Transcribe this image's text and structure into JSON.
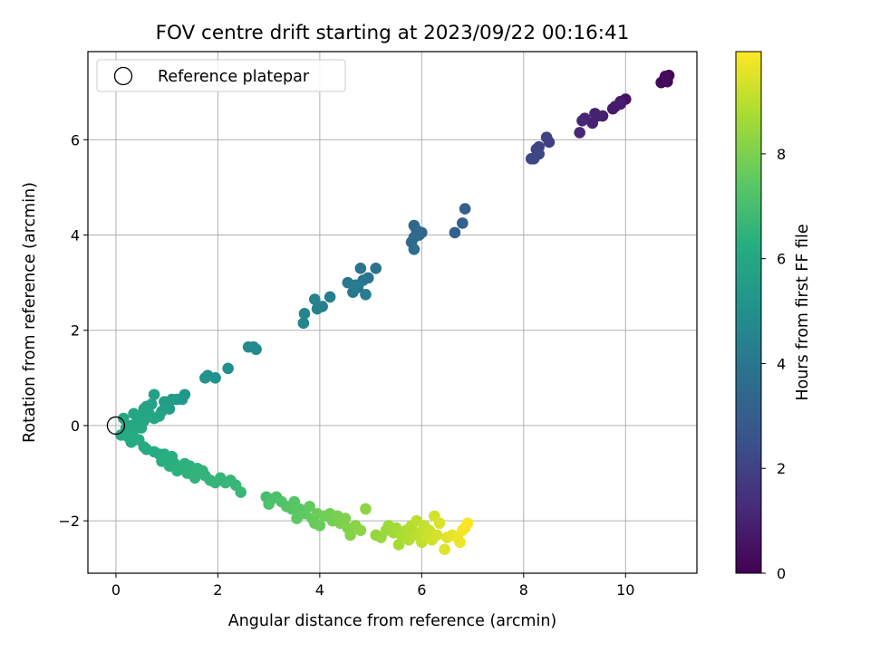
{
  "chart_data": {
    "type": "scatter",
    "title": "FOV centre drift starting at 2023/09/22 00:16:41",
    "xlabel": "Angular distance from reference (arcmin)",
    "ylabel": "Rotation from reference (arcmin)",
    "xlim": [
      -0.55,
      11.4
    ],
    "ylim": [
      -3.1,
      7.85
    ],
    "xticks": [
      0,
      2,
      4,
      6,
      8,
      10
    ],
    "yticks": [
      -2,
      0,
      2,
      4,
      6
    ],
    "grid": true,
    "legend": {
      "placement": "upper-left",
      "entries": [
        "Reference platepar"
      ]
    },
    "reference_point": {
      "x": 0,
      "y": 0,
      "marker": "open-circle"
    },
    "colorbar": {
      "label": "Hours from first FF file",
      "colormap": "viridis",
      "range": [
        0,
        9.95
      ],
      "ticks": [
        0,
        2,
        4,
        6,
        8
      ]
    },
    "points": [
      {
        "x": 10.85,
        "y": 7.35,
        "h": 0.05
      },
      {
        "x": 10.8,
        "y": 7.3,
        "h": 0.1
      },
      {
        "x": 10.75,
        "y": 7.25,
        "h": 0.15
      },
      {
        "x": 10.7,
        "y": 7.2,
        "h": 0.2
      },
      {
        "x": 10.82,
        "y": 7.22,
        "h": 0.25
      },
      {
        "x": 10.78,
        "y": 7.33,
        "h": 0.3
      },
      {
        "x": 10.0,
        "y": 6.85,
        "h": 0.5
      },
      {
        "x": 9.9,
        "y": 6.8,
        "h": 0.6
      },
      {
        "x": 9.8,
        "y": 6.7,
        "h": 0.7
      },
      {
        "x": 9.75,
        "y": 6.65,
        "h": 0.75
      },
      {
        "x": 9.9,
        "y": 6.75,
        "h": 0.8
      },
      {
        "x": 9.55,
        "y": 6.5,
        "h": 0.9
      },
      {
        "x": 9.45,
        "y": 6.5,
        "h": 0.95
      },
      {
        "x": 9.4,
        "y": 6.55,
        "h": 1.0
      },
      {
        "x": 9.35,
        "y": 6.35,
        "h": 1.05
      },
      {
        "x": 9.2,
        "y": 6.45,
        "h": 1.1
      },
      {
        "x": 9.15,
        "y": 6.4,
        "h": 1.15
      },
      {
        "x": 9.1,
        "y": 6.15,
        "h": 1.2
      },
      {
        "x": 8.5,
        "y": 5.95,
        "h": 1.9
      },
      {
        "x": 8.45,
        "y": 6.05,
        "h": 1.95
      },
      {
        "x": 8.3,
        "y": 5.85,
        "h": 2.0
      },
      {
        "x": 8.25,
        "y": 5.8,
        "h": 2.05
      },
      {
        "x": 8.3,
        "y": 5.7,
        "h": 2.1
      },
      {
        "x": 8.2,
        "y": 5.6,
        "h": 2.15
      },
      {
        "x": 8.15,
        "y": 5.6,
        "h": 2.2
      },
      {
        "x": 6.85,
        "y": 4.55,
        "h": 3.05
      },
      {
        "x": 6.8,
        "y": 4.25,
        "h": 3.1
      },
      {
        "x": 6.65,
        "y": 4.05,
        "h": 3.15
      },
      {
        "x": 6.0,
        "y": 4.05,
        "h": 3.3
      },
      {
        "x": 5.95,
        "y": 4.0,
        "h": 3.35
      },
      {
        "x": 5.85,
        "y": 4.2,
        "h": 3.4
      },
      {
        "x": 5.9,
        "y": 4.1,
        "h": 3.45
      },
      {
        "x": 5.85,
        "y": 3.95,
        "h": 3.5
      },
      {
        "x": 5.8,
        "y": 3.85,
        "h": 3.55
      },
      {
        "x": 5.85,
        "y": 3.7,
        "h": 3.6
      },
      {
        "x": 5.1,
        "y": 3.3,
        "h": 3.8
      },
      {
        "x": 4.95,
        "y": 3.1,
        "h": 3.85
      },
      {
        "x": 4.8,
        "y": 3.3,
        "h": 3.9
      },
      {
        "x": 4.85,
        "y": 3.05,
        "h": 3.95
      },
      {
        "x": 4.75,
        "y": 2.9,
        "h": 4.0
      },
      {
        "x": 4.55,
        "y": 3.0,
        "h": 4.05
      },
      {
        "x": 4.65,
        "y": 2.8,
        "h": 4.1
      },
      {
        "x": 4.7,
        "y": 2.95,
        "h": 4.15
      },
      {
        "x": 4.9,
        "y": 2.75,
        "h": 4.2
      },
      {
        "x": 4.2,
        "y": 2.7,
        "h": 4.3
      },
      {
        "x": 4.05,
        "y": 2.5,
        "h": 4.35
      },
      {
        "x": 3.95,
        "y": 2.45,
        "h": 4.4
      },
      {
        "x": 3.9,
        "y": 2.65,
        "h": 4.45
      },
      {
        "x": 3.7,
        "y": 2.35,
        "h": 4.5
      },
      {
        "x": 3.68,
        "y": 2.15,
        "h": 4.55
      },
      {
        "x": 2.7,
        "y": 1.65,
        "h": 4.7
      },
      {
        "x": 2.75,
        "y": 1.6,
        "h": 4.75
      },
      {
        "x": 2.6,
        "y": 1.65,
        "h": 4.8
      },
      {
        "x": 2.2,
        "y": 1.2,
        "h": 4.95
      },
      {
        "x": 1.8,
        "y": 1.05,
        "h": 5.0
      },
      {
        "x": 1.95,
        "y": 1.0,
        "h": 5.05
      },
      {
        "x": 1.75,
        "y": 1.0,
        "h": 5.1
      },
      {
        "x": 1.35,
        "y": 0.65,
        "h": 5.3
      },
      {
        "x": 1.3,
        "y": 0.55,
        "h": 5.35
      },
      {
        "x": 1.2,
        "y": 0.55,
        "h": 5.4
      },
      {
        "x": 1.1,
        "y": 0.55,
        "h": 5.45
      },
      {
        "x": 1.05,
        "y": 0.5,
        "h": 5.5
      },
      {
        "x": 0.95,
        "y": 0.5,
        "h": 5.55
      },
      {
        "x": 1.05,
        "y": 0.35,
        "h": 5.6
      },
      {
        "x": 0.9,
        "y": 0.3,
        "h": 5.65
      },
      {
        "x": 0.75,
        "y": 0.65,
        "h": 5.7
      },
      {
        "x": 0.7,
        "y": 0.45,
        "h": 5.75
      },
      {
        "x": 0.6,
        "y": 0.4,
        "h": 5.8
      },
      {
        "x": 0.55,
        "y": 0.35,
        "h": 5.82
      },
      {
        "x": 0.85,
        "y": 0.2,
        "h": 5.85
      },
      {
        "x": 0.75,
        "y": 0.15,
        "h": 5.87
      },
      {
        "x": 0.65,
        "y": 0.25,
        "h": 5.9
      },
      {
        "x": 0.45,
        "y": 0.2,
        "h": 5.92
      },
      {
        "x": 0.35,
        "y": 0.25,
        "h": 5.94
      },
      {
        "x": 0.55,
        "y": 0.1,
        "h": 5.96
      },
      {
        "x": 0.4,
        "y": 0.05,
        "h": 5.98
      },
      {
        "x": 0.3,
        "y": 0.0,
        "h": 6.0
      },
      {
        "x": 0.15,
        "y": 0.15,
        "h": 6.02
      },
      {
        "x": 0.5,
        "y": -0.05,
        "h": 6.04
      },
      {
        "x": 0.35,
        "y": -0.1,
        "h": 6.06
      },
      {
        "x": 0.2,
        "y": -0.05,
        "h": 6.08
      },
      {
        "x": 0.1,
        "y": -0.2,
        "h": 6.1
      },
      {
        "x": 0.25,
        "y": -0.25,
        "h": 6.12
      },
      {
        "x": 0.3,
        "y": -0.35,
        "h": 6.14
      },
      {
        "x": 0.45,
        "y": -0.3,
        "h": 6.16
      },
      {
        "x": 0.55,
        "y": -0.45,
        "h": 6.18
      },
      {
        "x": 0.6,
        "y": -0.5,
        "h": 6.2
      },
      {
        "x": 0.75,
        "y": -0.55,
        "h": 6.22
      },
      {
        "x": 0.85,
        "y": -0.6,
        "h": 6.24
      },
      {
        "x": 0.95,
        "y": -0.6,
        "h": 6.26
      },
      {
        "x": 0.9,
        "y": -0.75,
        "h": 6.28
      },
      {
        "x": 1.0,
        "y": -0.7,
        "h": 6.3
      },
      {
        "x": 1.1,
        "y": -0.65,
        "h": 6.32
      },
      {
        "x": 1.05,
        "y": -0.85,
        "h": 6.34
      },
      {
        "x": 1.15,
        "y": -0.8,
        "h": 6.36
      },
      {
        "x": 1.2,
        "y": -0.95,
        "h": 6.38
      },
      {
        "x": 1.3,
        "y": -0.9,
        "h": 6.4
      },
      {
        "x": 1.35,
        "y": -0.8,
        "h": 6.42
      },
      {
        "x": 1.45,
        "y": -0.85,
        "h": 6.44
      },
      {
        "x": 1.4,
        "y": -1.0,
        "h": 6.46
      },
      {
        "x": 1.55,
        "y": -1.0,
        "h": 6.48
      },
      {
        "x": 1.6,
        "y": -0.9,
        "h": 6.5
      },
      {
        "x": 1.55,
        "y": -1.1,
        "h": 6.52
      },
      {
        "x": 1.7,
        "y": -0.95,
        "h": 6.54
      },
      {
        "x": 1.75,
        "y": -1.05,
        "h": 6.56
      },
      {
        "x": 1.85,
        "y": -1.15,
        "h": 6.58
      },
      {
        "x": 1.95,
        "y": -1.2,
        "h": 6.6
      },
      {
        "x": 2.05,
        "y": -1.1,
        "h": 6.62
      },
      {
        "x": 2.15,
        "y": -1.2,
        "h": 6.64
      },
      {
        "x": 2.25,
        "y": -1.15,
        "h": 6.66
      },
      {
        "x": 2.35,
        "y": -1.25,
        "h": 6.68
      },
      {
        "x": 2.45,
        "y": -1.4,
        "h": 6.7
      },
      {
        "x": 2.95,
        "y": -1.5,
        "h": 7.0
      },
      {
        "x": 3.05,
        "y": -1.55,
        "h": 7.05
      },
      {
        "x": 3.15,
        "y": -1.5,
        "h": 7.1
      },
      {
        "x": 3.0,
        "y": -1.65,
        "h": 7.15
      },
      {
        "x": 3.25,
        "y": -1.6,
        "h": 7.2
      },
      {
        "x": 3.35,
        "y": -1.7,
        "h": 7.25
      },
      {
        "x": 3.5,
        "y": -1.6,
        "h": 7.3
      },
      {
        "x": 3.45,
        "y": -1.75,
        "h": 7.35
      },
      {
        "x": 3.6,
        "y": -1.75,
        "h": 7.4
      },
      {
        "x": 3.55,
        "y": -1.95,
        "h": 7.45
      },
      {
        "x": 3.7,
        "y": -1.85,
        "h": 7.5
      },
      {
        "x": 3.8,
        "y": -1.7,
        "h": 7.55
      },
      {
        "x": 3.85,
        "y": -1.95,
        "h": 7.6
      },
      {
        "x": 3.9,
        "y": -2.05,
        "h": 7.65
      },
      {
        "x": 4.0,
        "y": -2.1,
        "h": 7.7
      },
      {
        "x": 3.95,
        "y": -1.85,
        "h": 7.75
      },
      {
        "x": 4.1,
        "y": -1.9,
        "h": 7.8
      },
      {
        "x": 4.2,
        "y": -1.85,
        "h": 7.85
      },
      {
        "x": 4.25,
        "y": -2.0,
        "h": 7.9
      },
      {
        "x": 4.35,
        "y": -1.9,
        "h": 7.95
      },
      {
        "x": 4.4,
        "y": -2.05,
        "h": 8.0
      },
      {
        "x": 4.5,
        "y": -1.95,
        "h": 8.05
      },
      {
        "x": 4.55,
        "y": -2.15,
        "h": 8.1
      },
      {
        "x": 4.6,
        "y": -2.3,
        "h": 8.15
      },
      {
        "x": 4.7,
        "y": -2.1,
        "h": 8.2
      },
      {
        "x": 4.8,
        "y": -2.2,
        "h": 8.25
      },
      {
        "x": 4.9,
        "y": -1.75,
        "h": 8.3
      },
      {
        "x": 5.1,
        "y": -2.3,
        "h": 8.4
      },
      {
        "x": 5.2,
        "y": -2.35,
        "h": 8.45
      },
      {
        "x": 5.3,
        "y": -2.2,
        "h": 8.5
      },
      {
        "x": 5.35,
        "y": -2.1,
        "h": 8.55
      },
      {
        "x": 5.45,
        "y": -2.25,
        "h": 8.6
      },
      {
        "x": 5.5,
        "y": -2.15,
        "h": 8.65
      },
      {
        "x": 5.55,
        "y": -2.5,
        "h": 8.7
      },
      {
        "x": 5.6,
        "y": -2.3,
        "h": 8.75
      },
      {
        "x": 5.7,
        "y": -2.2,
        "h": 8.8
      },
      {
        "x": 5.75,
        "y": -2.4,
        "h": 8.85
      },
      {
        "x": 5.8,
        "y": -2.1,
        "h": 8.9
      },
      {
        "x": 5.85,
        "y": -2.3,
        "h": 8.95
      },
      {
        "x": 5.9,
        "y": -2.0,
        "h": 9.0
      },
      {
        "x": 5.95,
        "y": -2.25,
        "h": 9.05
      },
      {
        "x": 6.0,
        "y": -2.45,
        "h": 9.1
      },
      {
        "x": 6.05,
        "y": -2.1,
        "h": 9.15
      },
      {
        "x": 6.1,
        "y": -2.35,
        "h": 9.2
      },
      {
        "x": 6.15,
        "y": -2.2,
        "h": 9.25
      },
      {
        "x": 6.2,
        "y": -2.4,
        "h": 9.3
      },
      {
        "x": 6.25,
        "y": -1.9,
        "h": 9.35
      },
      {
        "x": 6.3,
        "y": -2.3,
        "h": 9.4
      },
      {
        "x": 6.35,
        "y": -2.05,
        "h": 9.45
      },
      {
        "x": 6.45,
        "y": -2.6,
        "h": 9.5
      },
      {
        "x": 6.5,
        "y": -2.35,
        "h": 9.55
      },
      {
        "x": 6.6,
        "y": -2.3,
        "h": 9.6
      },
      {
        "x": 6.7,
        "y": -2.35,
        "h": 9.7
      },
      {
        "x": 6.75,
        "y": -2.45,
        "h": 9.75
      },
      {
        "x": 6.8,
        "y": -2.2,
        "h": 9.8
      },
      {
        "x": 6.85,
        "y": -2.15,
        "h": 9.85
      },
      {
        "x": 6.9,
        "y": -2.05,
        "h": 9.9
      }
    ]
  }
}
